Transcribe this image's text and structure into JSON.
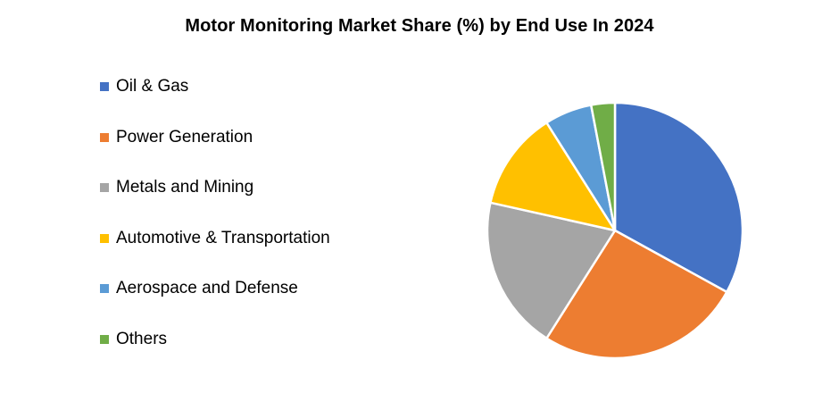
{
  "chart_data": {
    "type": "pie",
    "title": "Motor Monitoring Market Share (%) by End Use In 2024",
    "categories": [
      "Oil & Gas",
      "Power Generation",
      "Metals and Mining",
      "Automotive & Transportation",
      "Aerospace and Defense",
      "Others"
    ],
    "values": [
      33,
      26,
      19.5,
      12.5,
      6,
      3
    ],
    "colors": [
      "#4472C4",
      "#ED7D31",
      "#A5A5A5",
      "#FFC000",
      "#5B9BD5",
      "#70AD47"
    ],
    "legend_position": "left",
    "start_angle": "top, clockwise"
  }
}
